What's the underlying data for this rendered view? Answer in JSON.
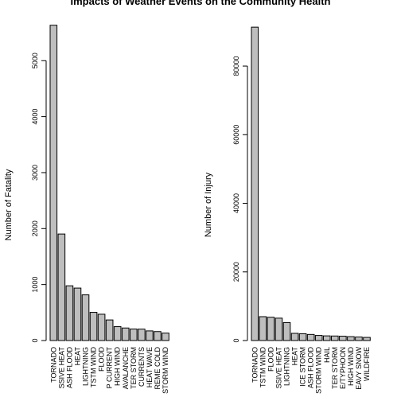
{
  "title": "Impacts of Weather Events on the Community Health",
  "chart_data": [
    {
      "type": "bar",
      "ylabel": "Number of Fatality",
      "ylim": [
        0,
        5700
      ],
      "yticks": [
        0,
        1000,
        2000,
        3000,
        4000,
        5000
      ],
      "categories": [
        "TORNADO",
        "EXCESSIVE HEAT",
        "FLASH FLOOD",
        "HEAT",
        "LIGHTNING",
        "TSTM WIND",
        "FLOOD",
        "RIP CURRENT",
        "HIGH WIND",
        "AVALANCHE",
        "WINTER STORM",
        "RIP CURRENTS",
        "HEAT WAVE",
        "EXTREME COLD",
        "THUNDERSTORM WIND"
      ],
      "category_labels": [
        "TORNADO",
        "SSIVE HEAT",
        "ASH FLOOD",
        "HEAT",
        "LIGHTNING",
        "TSTM WIND",
        "FLOOD",
        "P CURRENT",
        "HIGH WIND",
        "AVALANCHE",
        "TER STORM",
        "CURRENTS",
        "HEAT WAVE",
        "REME COLD",
        "STORM WIND"
      ],
      "values": [
        5633,
        1903,
        978,
        937,
        816,
        504,
        470,
        368,
        248,
        224,
        206,
        204,
        172,
        160,
        133
      ],
      "bar_color": "#bebebe"
    },
    {
      "type": "bar",
      "ylabel": "Number of Injury",
      "ylim": [
        0,
        93000
      ],
      "yticks": [
        0,
        20000,
        40000,
        60000,
        80000
      ],
      "categories": [
        "TORNADO",
        "TSTM WIND",
        "FLOOD",
        "EXCESSIVE HEAT",
        "LIGHTNING",
        "HEAT",
        "ICE STORM",
        "FLASH FLOOD",
        "THUNDERSTORM WIND",
        "HAIL",
        "WINTER STORM",
        "HURRICANE/TYPHOON",
        "HIGH WIND",
        "HEAVY SNOW",
        "WILDFIRE"
      ],
      "category_labels": [
        "TORNADO",
        "TSTM WIND",
        "FLOOD",
        "SSIVE HEAT",
        "LIGHTNING",
        "HEAT",
        "ICE STORM",
        "ASH FLOOD",
        "STORM WIND",
        "HAIL",
        "TER STORM",
        "E/TYPHOON",
        "HIGH WIND",
        "EAVY SNOW",
        "WILDFIRE"
      ],
      "values": [
        91346,
        6957,
        6789,
        6525,
        5230,
        2100,
        1975,
        1777,
        1488,
        1361,
        1321,
        1275,
        1137,
        1021,
        911
      ],
      "bar_color": "#bebebe"
    }
  ]
}
